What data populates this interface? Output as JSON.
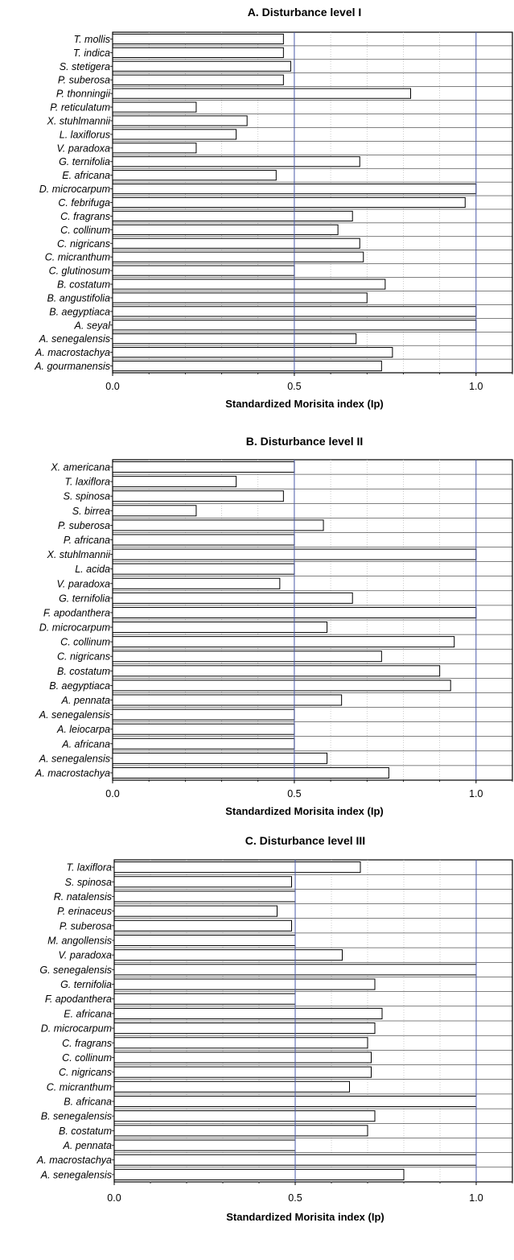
{
  "chart_data": [
    {
      "type": "bar",
      "orientation": "horizontal",
      "title": "A. Disturbance level I",
      "xlabel": "Standardized Morisita index (Ip)",
      "ylabel": "",
      "xlim": [
        0,
        1.1
      ],
      "xticks": [
        "0.0",
        "0.5",
        "1.0"
      ],
      "reference_lines": [
        0.5,
        1.0
      ],
      "categories": [
        "T. mollis",
        "T. indica",
        "S. stetigera",
        "P. suberosa",
        "P. thonningii",
        "P. reticulatum",
        "X. stuhlmannii",
        "L. laxiflorus",
        "V. paradoxa",
        "G. ternifolia",
        "E. africana",
        "D. microcarpum",
        "C. febrifuga",
        "C. fragrans",
        "C. collinum",
        "C. nigricans",
        "C. micranthum",
        "C. glutinosum",
        "B. costatum",
        "B. angustifolia",
        "B. aegyptiaca",
        "A. seyal",
        "A. senegalensis",
        "A. macrostachya",
        "A. gourmanensis"
      ],
      "values": [
        0.47,
        0.47,
        0.49,
        0.47,
        0.82,
        0.23,
        0.37,
        0.34,
        0.23,
        0.68,
        0.45,
        1.0,
        0.97,
        0.66,
        0.62,
        0.68,
        0.69,
        0.5,
        0.75,
        0.7,
        1.0,
        1.0,
        0.67,
        0.77,
        0.74
      ]
    },
    {
      "type": "bar",
      "orientation": "horizontal",
      "title": "B. Disturbance level II",
      "xlabel": "Standardized Morisita index (Ip)",
      "ylabel": "",
      "xlim": [
        0,
        1.1
      ],
      "xticks": [
        "0.0",
        "0.5",
        "1.0"
      ],
      "reference_lines": [
        0.5,
        1.0
      ],
      "categories": [
        "X. americana",
        "T. laxiflora",
        "S. spinosa",
        "S. birrea",
        "P. suberosa",
        "P. africana",
        "X. stuhlmannii",
        "L. acida",
        "V. paradoxa",
        "G. ternifolia",
        "F. apodanthera",
        "D. microcarpum",
        "C. collinum",
        "C. nigricans",
        "B. costatum",
        "B. aegyptiaca",
        "A. pennata",
        "A. senegalensis",
        "A. leiocarpa",
        "A. africana",
        "A. senegalensis",
        "A. macrostachya"
      ],
      "values": [
        0.5,
        0.34,
        0.47,
        0.23,
        0.58,
        0.5,
        1.0,
        0.5,
        0.46,
        0.66,
        1.0,
        0.59,
        0.94,
        0.74,
        0.9,
        0.93,
        0.63,
        0.5,
        0.5,
        0.5,
        0.59,
        0.76
      ]
    },
    {
      "type": "bar",
      "orientation": "horizontal",
      "title": "C. Disturbance level III",
      "xlabel": "Standardized Morisita index (Ip)",
      "ylabel": "",
      "xlim": [
        0,
        1.1
      ],
      "xticks": [
        "0.0",
        "0.5",
        "1.0"
      ],
      "reference_lines": [
        0.5,
        1.0
      ],
      "categories": [
        "T. laxiflora",
        "S. spinosa",
        "R. natalensis",
        "P. erinaceus",
        "P. suberosa",
        "M. angollensis",
        "V. paradoxa",
        "G. senegalensis",
        "G. ternifolia",
        "F. apodanthera",
        "E. africana",
        "D. microcarpum",
        "C. fragrans",
        "C. collinum",
        "C. nigricans",
        "C. micranthum",
        "B. africana",
        "B. senegalensis",
        "B. costatum",
        "A. pennata",
        "A. macrostachya",
        "A. senegalensis"
      ],
      "values": [
        0.68,
        0.49,
        0.5,
        0.45,
        0.49,
        0.5,
        0.63,
        1.0,
        0.72,
        0.5,
        0.74,
        0.72,
        0.7,
        0.71,
        0.71,
        0.65,
        1.0,
        0.72,
        0.7,
        0.5,
        1.0,
        0.8
      ]
    }
  ],
  "colors": {
    "bar_fill": "#ffffff",
    "bar_stroke": "#000000",
    "reference_line": "#4a5aa8",
    "minor_grid": "#b8b8b8"
  }
}
